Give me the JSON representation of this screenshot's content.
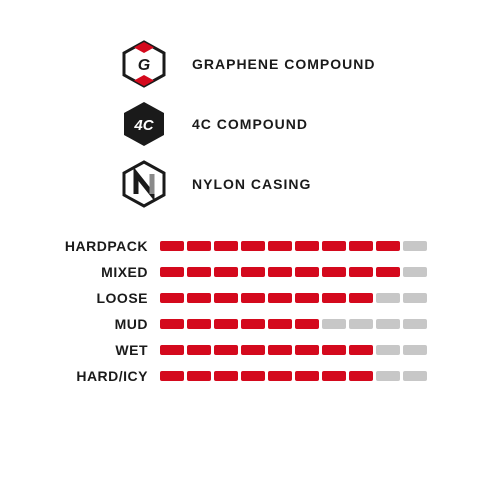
{
  "colors": {
    "filled": "#d4091d",
    "unfilled": "#c7c7c7",
    "text": "#1a1a1a",
    "iconBlack": "#1a1a1a",
    "iconAccent": "#d4091d",
    "iconGrey": "#8a8a8a",
    "background": "#ffffff"
  },
  "features": [
    {
      "id": "graphene",
      "label": "GRAPHENE COMPOUND"
    },
    {
      "id": "fourc",
      "label": "4C COMPOUND"
    },
    {
      "id": "nylon",
      "label": "NYLON CASING"
    }
  ],
  "ratings": {
    "maxSegments": 10,
    "segment": {
      "width": 24,
      "height": 10,
      "gap": 3,
      "radius": 2
    },
    "items": [
      {
        "label": "HARDPACK",
        "value": 9
      },
      {
        "label": "MIXED",
        "value": 9
      },
      {
        "label": "LOOSE",
        "value": 8
      },
      {
        "label": "MUD",
        "value": 6
      },
      {
        "label": "WET",
        "value": 8
      },
      {
        "label": "HARD/ICY",
        "value": 8
      }
    ]
  },
  "typography": {
    "labelFontSize": 14,
    "labelFontWeight": 700,
    "labelLetterSpacing": 1
  }
}
